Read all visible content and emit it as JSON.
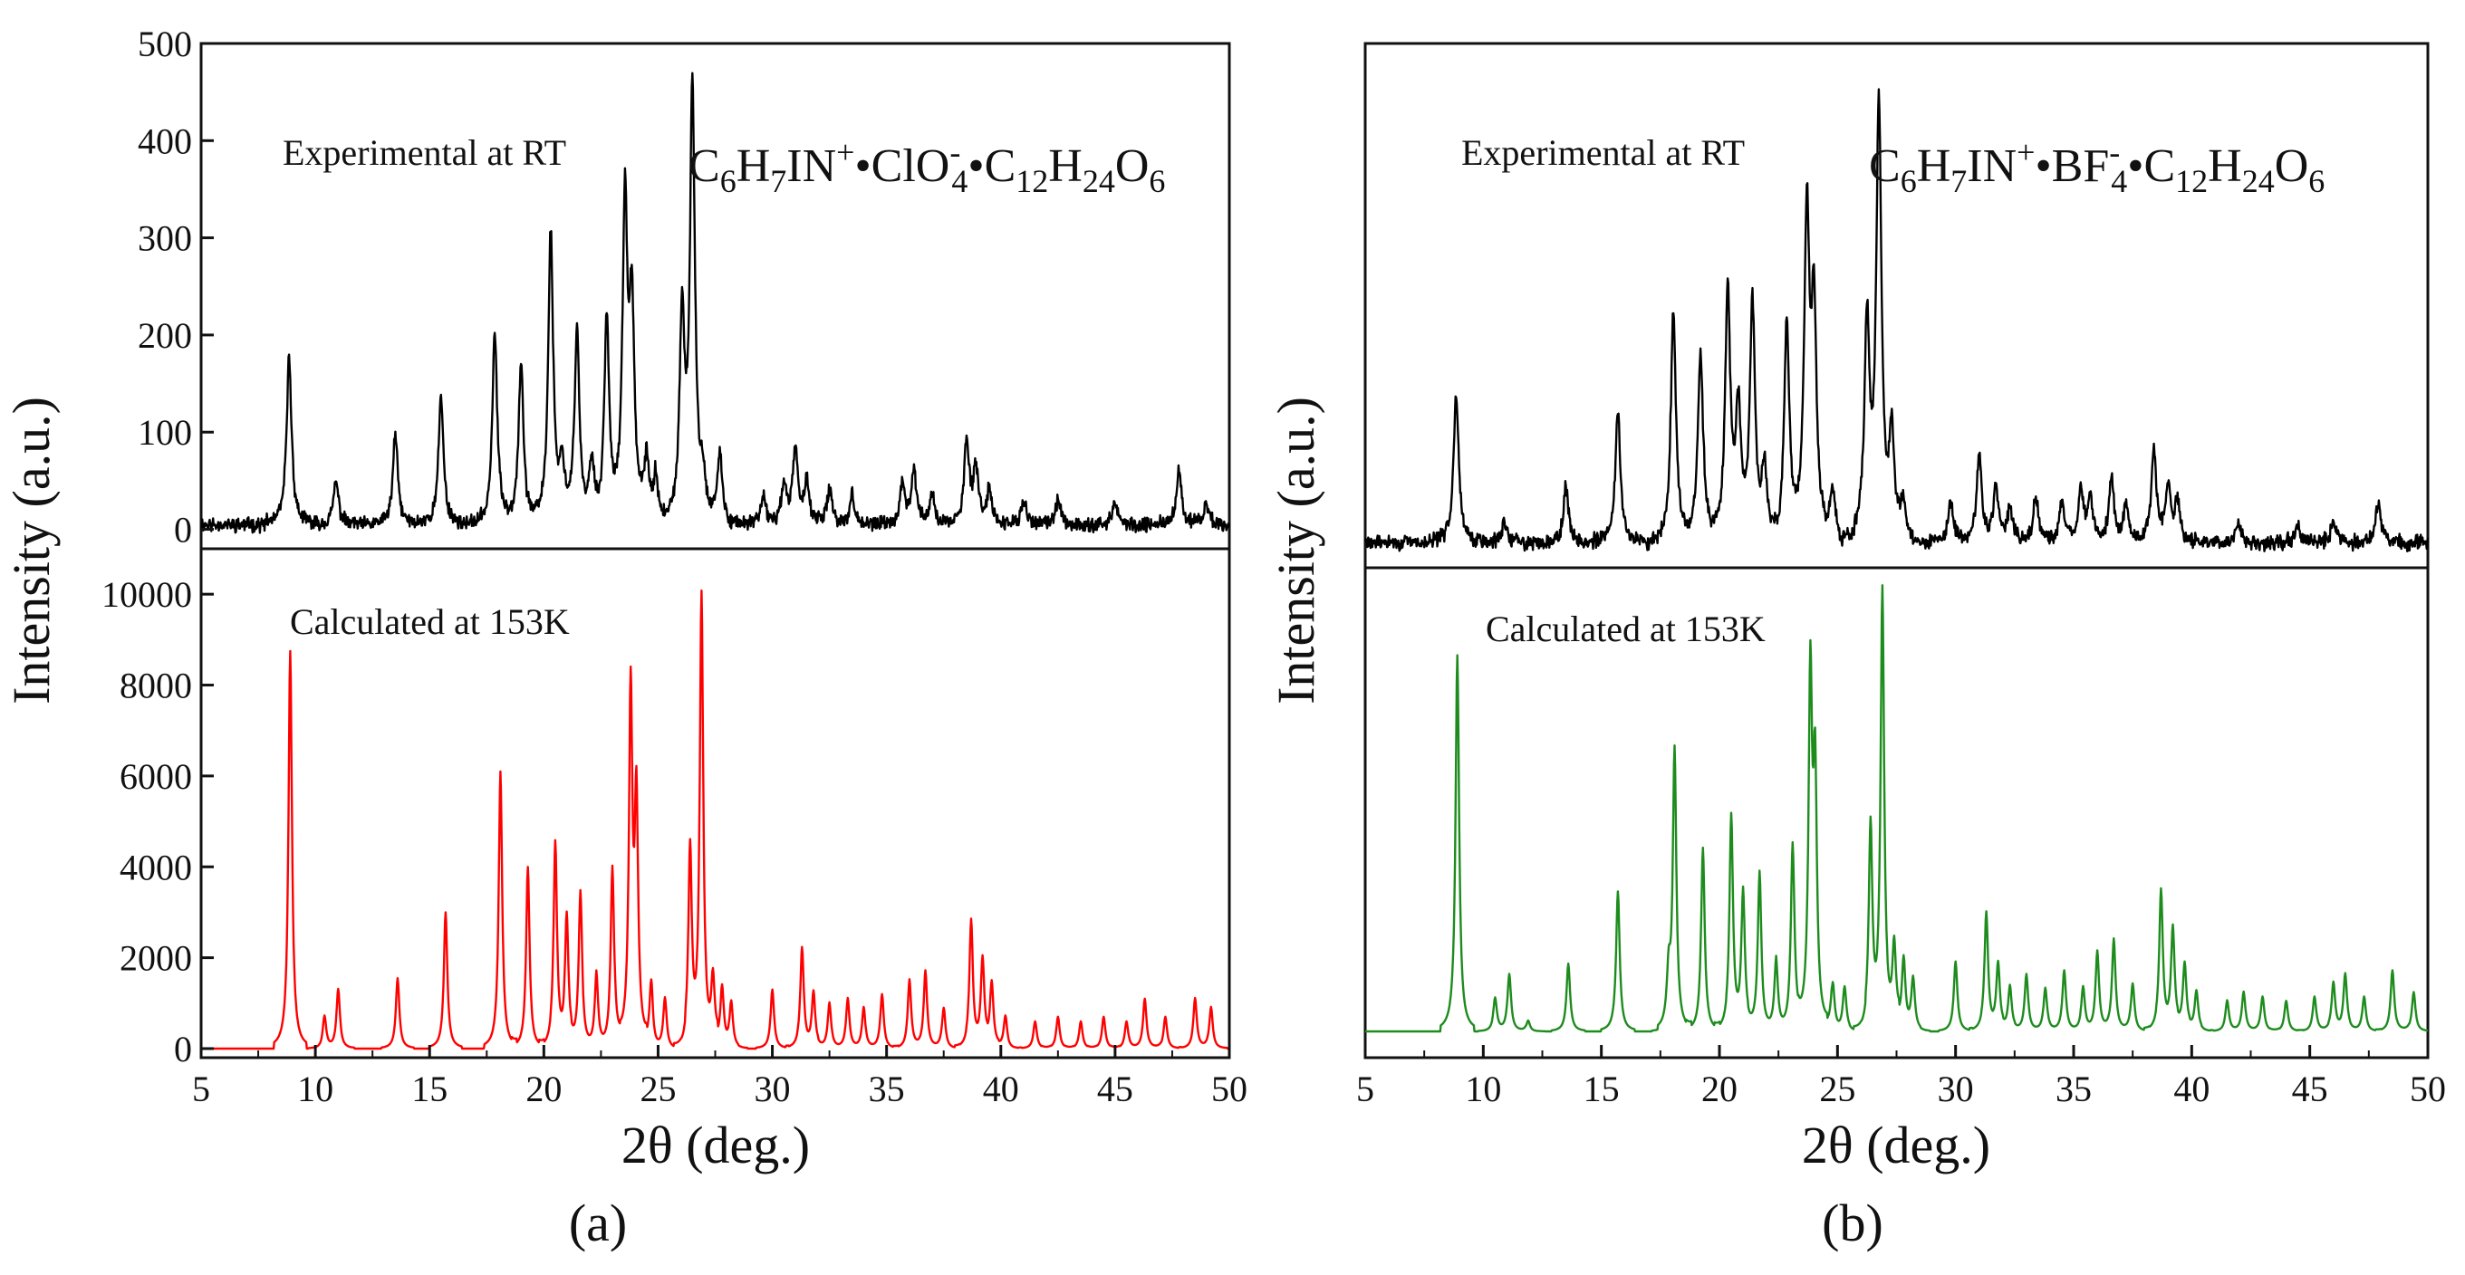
{
  "chart_data": [
    {
      "id": "a",
      "type": "line",
      "panel_label": "(a)",
      "xlabel": "2θ (deg.)",
      "ylabel": "Intensity (a.u.)",
      "xlim": [
        5,
        50
      ],
      "x_ticks": [
        5,
        10,
        15,
        20,
        25,
        30,
        35,
        40,
        45,
        50
      ],
      "formula": {
        "base1": "C",
        "sub1": "6",
        "base2": "H",
        "sub2": "7",
        "base3": "IN",
        "sup3": "+",
        "sep1": "•",
        "base4": "ClO",
        "sup4": "-",
        "sub4": "4",
        "sep2": "•",
        "base5": "C",
        "sub5": "12",
        "base6": "H",
        "sub6": "24",
        "base7": "O",
        "sub7": "6"
      },
      "series": [
        {
          "name": "Experimental at RT",
          "color": "#000000",
          "ylim": [
            -20,
            500
          ],
          "y_ticks": [
            0,
            100,
            200,
            300,
            400,
            500
          ],
          "show_tick_labels": true,
          "baseline": 5,
          "noise": 9,
          "seed": 11,
          "peak_width": 0.13,
          "peaks": [
            [
              8.85,
              172
            ],
            [
              10.9,
              45
            ],
            [
              13.5,
              92
            ],
            [
              15.5,
              132
            ],
            [
              17.85,
              198
            ],
            [
              19.0,
              168
            ],
            [
              20.3,
              302
            ],
            [
              20.8,
              55
            ],
            [
              21.45,
              198
            ],
            [
              22.1,
              60
            ],
            [
              22.75,
              208
            ],
            [
              23.55,
              318
            ],
            [
              23.85,
              215
            ],
            [
              24.5,
              60
            ],
            [
              24.9,
              50
            ],
            [
              26.05,
              205
            ],
            [
              26.5,
              445
            ],
            [
              26.95,
              40
            ],
            [
              27.7,
              75
            ],
            [
              29.6,
              30
            ],
            [
              30.5,
              40
            ],
            [
              31.0,
              78
            ],
            [
              31.5,
              45
            ],
            [
              32.5,
              35
            ],
            [
              33.5,
              30
            ],
            [
              35.7,
              40
            ],
            [
              36.2,
              55
            ],
            [
              37.0,
              30
            ],
            [
              38.5,
              82
            ],
            [
              38.9,
              60
            ],
            [
              39.5,
              35
            ],
            [
              41.0,
              25
            ],
            [
              42.5,
              25
            ],
            [
              45.0,
              22
            ],
            [
              47.8,
              55
            ],
            [
              49.0,
              22
            ]
          ]
        },
        {
          "name": "Calculated at 153K",
          "color": "#ff0000",
          "ylim": [
            -200,
            11000
          ],
          "y_ticks": [
            0,
            2000,
            4000,
            6000,
            8000,
            10000
          ],
          "show_tick_labels": true,
          "baseline": 0,
          "noise": 0,
          "seed": 3,
          "peak_width": 0.09,
          "peaks": [
            [
              8.9,
              8750
            ],
            [
              10.4,
              700
            ],
            [
              11.0,
              1300
            ],
            [
              13.6,
              1550
            ],
            [
              15.7,
              3000
            ],
            [
              18.1,
              6100
            ],
            [
              19.3,
              4000
            ],
            [
              20.5,
              4500
            ],
            [
              21.0,
              2800
            ],
            [
              21.6,
              3400
            ],
            [
              22.3,
              1600
            ],
            [
              23.0,
              4000
            ],
            [
              23.8,
              7800
            ],
            [
              24.05,
              5300
            ],
            [
              24.7,
              1400
            ],
            [
              25.3,
              1100
            ],
            [
              26.4,
              4300
            ],
            [
              26.9,
              9900
            ],
            [
              27.4,
              1400
            ],
            [
              27.8,
              1300
            ],
            [
              28.2,
              1000
            ],
            [
              30.0,
              1300
            ],
            [
              31.3,
              2200
            ],
            [
              31.8,
              1200
            ],
            [
              32.5,
              1000
            ],
            [
              33.3,
              1100
            ],
            [
              34.0,
              900
            ],
            [
              34.8,
              1200
            ],
            [
              36.0,
              1500
            ],
            [
              36.7,
              1700
            ],
            [
              37.5,
              900
            ],
            [
              38.7,
              2800
            ],
            [
              39.2,
              1900
            ],
            [
              39.6,
              1400
            ],
            [
              40.2,
              700
            ],
            [
              41.5,
              600
            ],
            [
              42.5,
              700
            ],
            [
              43.5,
              600
            ],
            [
              44.5,
              700
            ],
            [
              45.5,
              600
            ],
            [
              46.3,
              1100
            ],
            [
              47.2,
              700
            ],
            [
              48.5,
              1100
            ],
            [
              49.2,
              900
            ]
          ]
        }
      ]
    },
    {
      "id": "b",
      "type": "line",
      "panel_label": "(b)",
      "xlabel": "2θ (deg.)",
      "ylabel": "Intensity (a.u.)",
      "xlim": [
        5,
        50
      ],
      "x_ticks": [
        5,
        10,
        15,
        20,
        25,
        30,
        35,
        40,
        45,
        50
      ],
      "formula": {
        "base1": "C",
        "sub1": "6",
        "base2": "H",
        "sub2": "7",
        "base3": "IN",
        "sup3": "+",
        "sep1": "•",
        "base4": "BF",
        "sup4": "-",
        "sub4": "4",
        "sep2": "•",
        "base5": "C",
        "sub5": "12",
        "base6": "H",
        "sub6": "24",
        "base7": "O",
        "sub7": "6"
      },
      "series": [
        {
          "name": "Experimental at RT",
          "color": "#000000",
          "ylim": [
            -20,
            500
          ],
          "y_ticks": [],
          "show_tick_labels": false,
          "baseline": 5,
          "noise": 9,
          "seed": 29,
          "peak_width": 0.13,
          "peaks": [
            [
              8.85,
              150
            ],
            [
              10.9,
              20
            ],
            [
              13.5,
              55
            ],
            [
              15.7,
              130
            ],
            [
              18.05,
              230
            ],
            [
              19.2,
              190
            ],
            [
              20.35,
              250
            ],
            [
              20.8,
              125
            ],
            [
              21.4,
              235
            ],
            [
              21.9,
              70
            ],
            [
              22.85,
              215
            ],
            [
              23.7,
              315
            ],
            [
              24.0,
              225
            ],
            [
              24.8,
              50
            ],
            [
              26.25,
              215
            ],
            [
              26.75,
              430
            ],
            [
              27.3,
              100
            ],
            [
              27.8,
              40
            ],
            [
              29.8,
              40
            ],
            [
              31.0,
              85
            ],
            [
              31.7,
              55
            ],
            [
              32.3,
              35
            ],
            [
              33.4,
              45
            ],
            [
              34.5,
              40
            ],
            [
              35.3,
              50
            ],
            [
              35.7,
              45
            ],
            [
              36.6,
              62
            ],
            [
              37.2,
              35
            ],
            [
              38.4,
              90
            ],
            [
              39.0,
              55
            ],
            [
              39.4,
              40
            ],
            [
              42.0,
              20
            ],
            [
              44.5,
              20
            ],
            [
              46.0,
              20
            ],
            [
              47.9,
              40
            ]
          ]
        },
        {
          "name": "Calculated at 153K",
          "color": "#1d8c1d",
          "ylim": [
            -600,
            10600
          ],
          "y_ticks": [],
          "show_tick_labels": false,
          "baseline": 0,
          "noise": 0,
          "seed": 5,
          "peak_width": 0.09,
          "peaks": [
            [
              8.9,
              8600
            ],
            [
              10.5,
              750
            ],
            [
              11.1,
              1300
            ],
            [
              11.9,
              250
            ],
            [
              13.6,
              1550
            ],
            [
              15.7,
              3200
            ],
            [
              17.85,
              1200
            ],
            [
              18.1,
              6400
            ],
            [
              19.3,
              4200
            ],
            [
              20.5,
              4900
            ],
            [
              21.0,
              3100
            ],
            [
              21.7,
              3600
            ],
            [
              22.4,
              1600
            ],
            [
              23.1,
              4300
            ],
            [
              23.85,
              8000
            ],
            [
              24.05,
              5600
            ],
            [
              24.8,
              1100
            ],
            [
              25.3,
              1000
            ],
            [
              26.4,
              4600
            ],
            [
              26.9,
              10000
            ],
            [
              27.4,
              1800
            ],
            [
              27.8,
              1600
            ],
            [
              28.2,
              1200
            ],
            [
              30.0,
              1600
            ],
            [
              31.3,
              2700
            ],
            [
              31.8,
              1500
            ],
            [
              32.3,
              1000
            ],
            [
              33.0,
              1300
            ],
            [
              33.8,
              1000
            ],
            [
              34.6,
              1400
            ],
            [
              35.4,
              1000
            ],
            [
              36.0,
              1800
            ],
            [
              36.7,
              2100
            ],
            [
              37.5,
              1100
            ],
            [
              38.7,
              3200
            ],
            [
              39.2,
              2300
            ],
            [
              39.7,
              1500
            ],
            [
              40.2,
              900
            ],
            [
              41.5,
              700
            ],
            [
              42.2,
              900
            ],
            [
              43.0,
              800
            ],
            [
              44.0,
              700
            ],
            [
              45.2,
              800
            ],
            [
              46.0,
              1100
            ],
            [
              46.5,
              1300
            ],
            [
              47.3,
              800
            ],
            [
              48.5,
              1400
            ],
            [
              49.4,
              900
            ]
          ]
        }
      ]
    }
  ]
}
